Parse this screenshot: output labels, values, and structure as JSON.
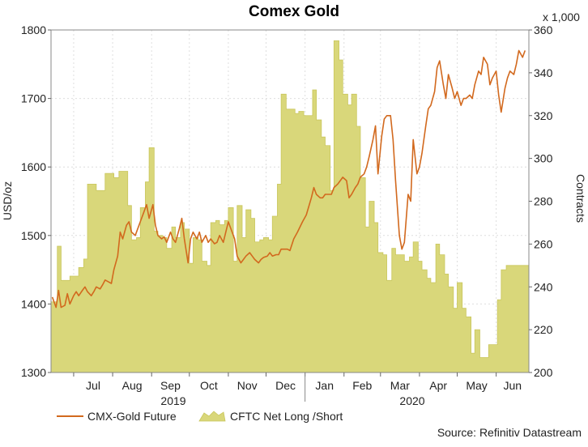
{
  "chart_data": {
    "type": "line",
    "title": "Comex Gold",
    "source": "Source: Refinitiv Datastream",
    "y_left": {
      "label": "USD/oz",
      "range": [
        1300,
        1800
      ],
      "ticks": [
        "1300",
        "1400",
        "1500",
        "1600",
        "1700",
        "1800"
      ]
    },
    "y_right": {
      "label": "Contracts",
      "unit_label": "x 1,000",
      "range": [
        200,
        360
      ],
      "ticks": [
        "200",
        "220",
        "240",
        "260",
        "280",
        "300",
        "320",
        "340",
        "360"
      ]
    },
    "x_axis": {
      "month_labels": [
        "Jul",
        "Aug",
        "Sep",
        "Oct",
        "Nov",
        "Dec",
        "Jan",
        "Feb",
        "Mar",
        "Apr",
        "May",
        "Jun"
      ],
      "year_labels": [
        "2019",
        "2020"
      ]
    },
    "grid": true,
    "legend": {
      "placement": "bottom-left",
      "entries": [
        "CMX-Gold Future",
        "CFTC Net Long /Short"
      ]
    },
    "colors": {
      "line": "#d2691e",
      "area_fill": "#d9d77a",
      "area_edge": "#c9c65c",
      "grid": "#dedede"
    },
    "series": [
      {
        "name": "CFTC Net Long /Short",
        "kind": "area",
        "axis": "right",
        "x": [
          "2019-06-14",
          "2019-06-18",
          "2019-06-21",
          "2019-06-25",
          "2019-06-28",
          "2019-07-02",
          "2019-07-05",
          "2019-07-09",
          "2019-07-12",
          "2019-07-16",
          "2019-07-19",
          "2019-07-23",
          "2019-07-26",
          "2019-07-30",
          "2019-08-02",
          "2019-08-06",
          "2019-08-09",
          "2019-08-13",
          "2019-08-16",
          "2019-08-20",
          "2019-08-23",
          "2019-08-27",
          "2019-08-30",
          "2019-09-03",
          "2019-09-06",
          "2019-09-10",
          "2019-09-13",
          "2019-09-17",
          "2019-09-20",
          "2019-09-24",
          "2019-09-27",
          "2019-10-01",
          "2019-10-04",
          "2019-10-08",
          "2019-10-11",
          "2019-10-15",
          "2019-10-18",
          "2019-10-22",
          "2019-10-25",
          "2019-10-29",
          "2019-11-01",
          "2019-11-05",
          "2019-11-08",
          "2019-11-12",
          "2019-11-15",
          "2019-11-19",
          "2019-11-22",
          "2019-11-26",
          "2019-11-29",
          "2019-12-03",
          "2019-12-06",
          "2019-12-10",
          "2019-12-13",
          "2019-12-17",
          "2019-12-20",
          "2019-12-24",
          "2019-12-27",
          "2019-12-31",
          "2020-01-03",
          "2020-01-07",
          "2020-01-10",
          "2020-01-14",
          "2020-01-17",
          "2020-01-21",
          "2020-01-24",
          "2020-01-28",
          "2020-01-31",
          "2020-02-04",
          "2020-02-07",
          "2020-02-11",
          "2020-02-14",
          "2020-02-18",
          "2020-02-21",
          "2020-02-25",
          "2020-02-28",
          "2020-03-03",
          "2020-03-06",
          "2020-03-10",
          "2020-03-13",
          "2020-03-17",
          "2020-03-20",
          "2020-03-24",
          "2020-03-27",
          "2020-03-31",
          "2020-04-03",
          "2020-04-07",
          "2020-04-10",
          "2020-04-14",
          "2020-04-17",
          "2020-04-21",
          "2020-04-24",
          "2020-04-28",
          "2020-05-01",
          "2020-05-05",
          "2020-05-08",
          "2020-05-12",
          "2020-05-15",
          "2020-05-19",
          "2020-05-22",
          "2020-05-26",
          "2020-05-29",
          "2020-06-02",
          "2020-06-05",
          "2020-06-09",
          "2020-06-12",
          "2020-06-16",
          "2020-06-19",
          "2020-06-23"
        ],
        "values": [
          233,
          259,
          243,
          243,
          245,
          245,
          249,
          253,
          288,
          288,
          285,
          285,
          293,
          293,
          291,
          294,
          294,
          278,
          262,
          263,
          277,
          289,
          305,
          266,
          264,
          263,
          258,
          268,
          263,
          270,
          267,
          251,
          263,
          262,
          252,
          250,
          270,
          271,
          269,
          271,
          277,
          252,
          278,
          263,
          276,
          272,
          261,
          262,
          263,
          262,
          273,
          288,
          330,
          323,
          323,
          321,
          322,
          320,
          320,
          332,
          318,
          310,
          306,
          285,
          355,
          346,
          330,
          325,
          330,
          315,
          291,
          268,
          280,
          270,
          256,
          255,
          243,
          258,
          255,
          255,
          252,
          254,
          261,
          252,
          248,
          244,
          242,
          260,
          255,
          246,
          240,
          230,
          242,
          230,
          226,
          209,
          220,
          207,
          207,
          213,
          213,
          234,
          248,
          250,
          250,
          250,
          250,
          250
        ],
        "values_note": "weekly net long contracts, x 1,000"
      },
      {
        "name": "CMX-Gold Future",
        "kind": "line",
        "axis": "left",
        "x": [
          "2019-06-14",
          "2019-06-17",
          "2019-06-19",
          "2019-06-21",
          "2019-06-24",
          "2019-06-26",
          "2019-06-28",
          "2019-07-01",
          "2019-07-03",
          "2019-07-05",
          "2019-07-08",
          "2019-07-10",
          "2019-07-12",
          "2019-07-15",
          "2019-07-17",
          "2019-07-19",
          "2019-07-22",
          "2019-07-24",
          "2019-07-26",
          "2019-07-29",
          "2019-07-31",
          "2019-08-02",
          "2019-08-05",
          "2019-08-07",
          "2019-08-09",
          "2019-08-12",
          "2019-08-14",
          "2019-08-16",
          "2019-08-19",
          "2019-08-21",
          "2019-08-23",
          "2019-08-26",
          "2019-08-28",
          "2019-08-30",
          "2019-09-02",
          "2019-09-04",
          "2019-09-06",
          "2019-09-09",
          "2019-09-11",
          "2019-09-13",
          "2019-09-16",
          "2019-09-18",
          "2019-09-20",
          "2019-09-23",
          "2019-09-25",
          "2019-09-27",
          "2019-09-30",
          "2019-10-02",
          "2019-10-04",
          "2019-10-07",
          "2019-10-09",
          "2019-10-11",
          "2019-10-14",
          "2019-10-16",
          "2019-10-18",
          "2019-10-21",
          "2019-10-23",
          "2019-10-25",
          "2019-10-28",
          "2019-10-30",
          "2019-11-01",
          "2019-11-04",
          "2019-11-06",
          "2019-11-08",
          "2019-11-11",
          "2019-11-13",
          "2019-11-15",
          "2019-11-18",
          "2019-11-20",
          "2019-11-22",
          "2019-11-25",
          "2019-11-27",
          "2019-11-29",
          "2019-12-02",
          "2019-12-04",
          "2019-12-06",
          "2019-12-09",
          "2019-12-11",
          "2019-12-13",
          "2019-12-16",
          "2019-12-18",
          "2019-12-20",
          "2019-12-23",
          "2019-12-26",
          "2019-12-30",
          "2020-01-02",
          "2020-01-06",
          "2020-01-08",
          "2020-01-10",
          "2020-01-13",
          "2020-01-15",
          "2020-01-17",
          "2020-01-20",
          "2020-01-22",
          "2020-01-24",
          "2020-01-27",
          "2020-01-29",
          "2020-01-31",
          "2020-02-03",
          "2020-02-05",
          "2020-02-07",
          "2020-02-10",
          "2020-02-12",
          "2020-02-14",
          "2020-02-17",
          "2020-02-19",
          "2020-02-21",
          "2020-02-24",
          "2020-02-26",
          "2020-02-28",
          "2020-03-02",
          "2020-03-04",
          "2020-03-06",
          "2020-03-09",
          "2020-03-11",
          "2020-03-13",
          "2020-03-16",
          "2020-03-18",
          "2020-03-20",
          "2020-03-23",
          "2020-03-25",
          "2020-03-27",
          "2020-03-30",
          "2020-04-01",
          "2020-04-03",
          "2020-04-06",
          "2020-04-08",
          "2020-04-10",
          "2020-04-13",
          "2020-04-15",
          "2020-04-17",
          "2020-04-20",
          "2020-04-22",
          "2020-04-24",
          "2020-04-27",
          "2020-04-29",
          "2020-05-01",
          "2020-05-04",
          "2020-05-06",
          "2020-05-08",
          "2020-05-11",
          "2020-05-13",
          "2020-05-15",
          "2020-05-18",
          "2020-05-20",
          "2020-05-22",
          "2020-05-25",
          "2020-05-27",
          "2020-05-29",
          "2020-06-01",
          "2020-06-03",
          "2020-06-05",
          "2020-06-08",
          "2020-06-10",
          "2020-06-12",
          "2020-06-15",
          "2020-06-17",
          "2020-06-19",
          "2020-06-22",
          "2020-06-24"
        ],
        "values": [
          1410,
          1395,
          1420,
          1395,
          1398,
          1415,
          1400,
          1412,
          1418,
          1412,
          1420,
          1425,
          1418,
          1412,
          1418,
          1425,
          1422,
          1428,
          1435,
          1432,
          1430,
          1450,
          1470,
          1505,
          1495,
          1515,
          1520,
          1505,
          1500,
          1510,
          1520,
          1535,
          1545,
          1525,
          1545,
          1515,
          1500,
          1495,
          1498,
          1490,
          1505,
          1495,
          1490,
          1510,
          1525,
          1495,
          1460,
          1495,
          1505,
          1495,
          1505,
          1490,
          1500,
          1490,
          1495,
          1488,
          1490,
          1500,
          1490,
          1505,
          1520,
          1505,
          1495,
          1470,
          1460,
          1465,
          1470,
          1475,
          1470,
          1465,
          1460,
          1465,
          1468,
          1470,
          1475,
          1470,
          1472,
          1472,
          1480,
          1480,
          1480,
          1478,
          1495,
          1505,
          1520,
          1530,
          1555,
          1570,
          1560,
          1555,
          1555,
          1560,
          1560,
          1560,
          1570,
          1575,
          1580,
          1585,
          1580,
          1555,
          1560,
          1570,
          1575,
          1585,
          1590,
          1600,
          1615,
          1640,
          1660,
          1590,
          1645,
          1670,
          1675,
          1675,
          1640,
          1580,
          1500,
          1480,
          1490,
          1560,
          1550,
          1640,
          1590,
          1600,
          1620,
          1660,
          1685,
          1690,
          1710,
          1745,
          1755,
          1720,
          1700,
          1735,
          1715,
          1700,
          1710,
          1690,
          1700,
          1700,
          1705,
          1700,
          1720,
          1740,
          1735,
          1760,
          1750,
          1720,
          1730,
          1740,
          1705,
          1680,
          1715,
          1730,
          1740,
          1735,
          1750,
          1770,
          1760,
          1770
        ]
      }
    ]
  }
}
